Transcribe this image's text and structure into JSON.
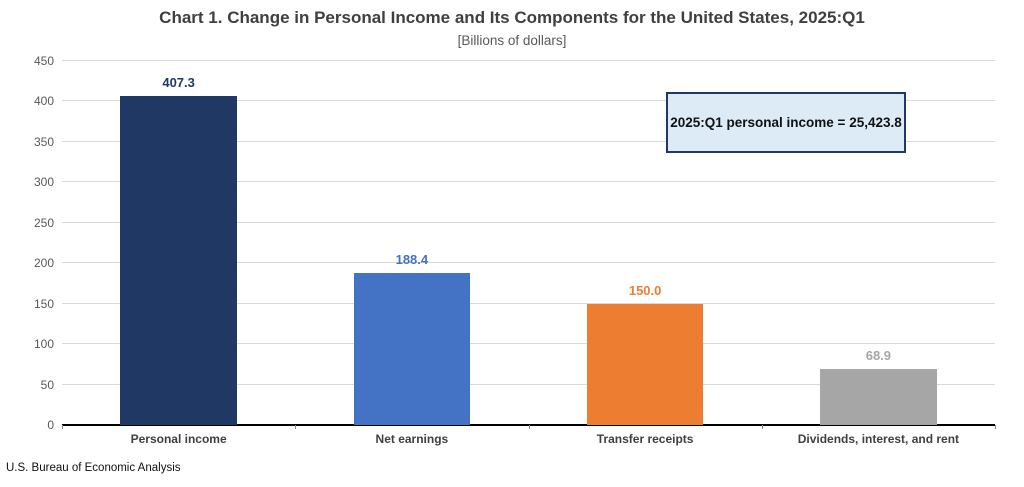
{
  "chart_data": {
    "type": "bar",
    "title": "Chart 1. Change in Personal Income and Its Components for the United States, 2025:Q1",
    "subtitle": "[Billions of dollars]",
    "categories": [
      "Personal income",
      "Net earnings",
      "Transfer receipts",
      "Dividends, interest, and rent"
    ],
    "values": [
      407.3,
      188.4,
      150.0,
      68.9
    ],
    "value_labels": [
      "407.3",
      "188.4",
      "150.0",
      "68.9"
    ],
    "bar_colors": [
      "#1F3864",
      "#4472C4",
      "#ED7D31",
      "#A6A6A6"
    ],
    "label_colors": [
      "#1F3864",
      "#4472C4",
      "#ED7D31",
      "#A6A6A6"
    ],
    "xlabel": "",
    "ylabel": "",
    "ylim": [
      0,
      450
    ],
    "yticks": [
      0,
      50,
      100,
      150,
      200,
      250,
      300,
      350,
      400,
      450
    ],
    "grid": true,
    "legend": "none",
    "annotation": {
      "text": "2025:Q1 personal income = 25,423.8",
      "fill_color": "#DDEBF7",
      "border_color": "#1F3864"
    }
  },
  "footer": {
    "source": "U.S. Bureau of Economic Analysis"
  }
}
